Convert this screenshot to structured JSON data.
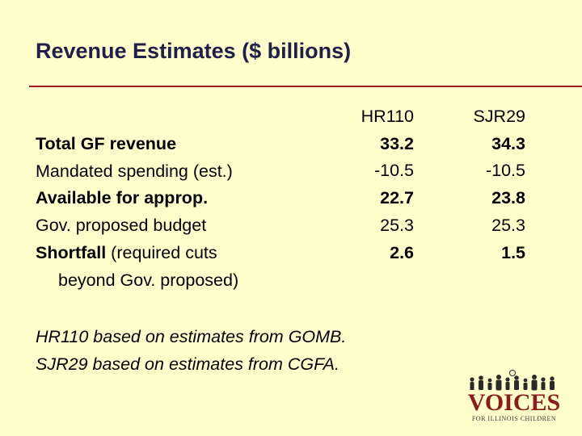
{
  "title": "Revenue Estimates ($ billions)",
  "rows": [
    {
      "label": "Total GF revenue",
      "bold": true
    },
    {
      "label": "Mandated spending (est.)",
      "bold": false
    },
    {
      "label": "Available for approp.",
      "bold": true
    },
    {
      "label": "Gov. proposed budget",
      "bold": false
    },
    {
      "label_bold": "Shortfall",
      "label_rest": " (required cuts"
    },
    {
      "label": "beyond Gov. proposed)"
    }
  ],
  "columns": [
    {
      "header": "HR110",
      "values": [
        "33.2",
        "-10.5",
        "22.7",
        "25.3",
        "2.6"
      ]
    },
    {
      "header": "SJR29",
      "values": [
        "34.3",
        "-10.5",
        "23.8",
        "25.3",
        "1.5"
      ]
    }
  ],
  "notes": [
    "HR110 based on estimates from GOMB.",
    "SJR29 based on estimates from CGFA."
  ],
  "logo": {
    "word": "VOICES",
    "sub": "FOR ILLINOIS CHILDREN",
    "color": "#8b1a1a"
  },
  "colors": {
    "background": "#ffffcc",
    "title": "#1f1f4a",
    "rule": "#a02020"
  }
}
